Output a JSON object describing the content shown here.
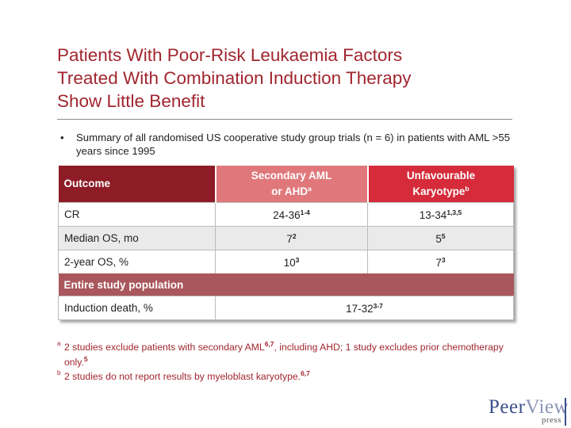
{
  "title": {
    "line1": "Patients With Poor-Risk Leukaemia Factors",
    "line2": "Treated With Combination Induction Therapy",
    "line3": "Show Little Benefit"
  },
  "bullet": {
    "marker": "•",
    "text": "Summary of all randomised US cooperative study group trials (n = 6) in patients with AML >55 years since 1995"
  },
  "table": {
    "header": {
      "outcome": "Outcome",
      "col2_line1": "Secondary AML",
      "col2_line2": "or AHD",
      "col2_sup": "a",
      "col3_line1": "Unfavourable",
      "col3_line2": "Karyotype",
      "col3_sup": "b"
    },
    "rows": [
      {
        "label": "CR",
        "v1": "24-36",
        "v1_sup": "1-4",
        "v2": "13-34",
        "v2_sup": "1,3,5"
      },
      {
        "label": "Median OS, mo",
        "v1": "7",
        "v1_sup": "2",
        "v2": "5",
        "v2_sup": "5"
      },
      {
        "label": "2-year OS, %",
        "v1": "10",
        "v1_sup": "3",
        "v2": "7",
        "v2_sup": "3"
      }
    ],
    "section_label": "Entire study population",
    "induction": {
      "label": "Induction death, %",
      "value": "17-32",
      "value_sup": "3-7"
    }
  },
  "footnotes": {
    "a_marker": "a",
    "a_text_1": "2 studies exclude patients with secondary AML",
    "a_sup_1": "6,7",
    "a_text_2": ", including AHD; 1 study excludes prior chemotherapy only.",
    "a_sup_2": "5",
    "b_marker": "b",
    "b_text": "2 studies do not report results by myeloblast karyotype.",
    "b_sup": "6,7"
  },
  "logo": {
    "part1": "Peer",
    "part2": "View",
    "sub": "press"
  },
  "colors": {
    "title": "#a1262f",
    "header_outcome": "#8e1c26",
    "header_secondary": "#e0787b",
    "header_unfavourable": "#d52b3a",
    "section_row": "#a9575c",
    "logo_blue": "#3c4f8a"
  }
}
